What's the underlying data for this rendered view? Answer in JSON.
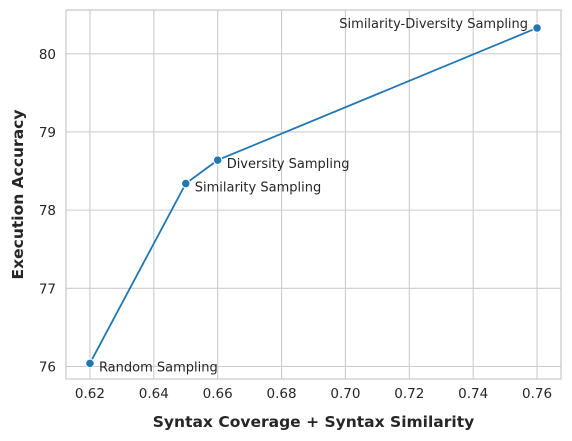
{
  "chart_data": {
    "type": "line",
    "title": "",
    "xlabel": "Syntax Coverage + Syntax Similarity",
    "ylabel": "Execution Accuracy",
    "xlim": [
      0.6125,
      0.7675
    ],
    "ylim": [
      75.84,
      80.56
    ],
    "xticks": [
      0.62,
      0.64,
      0.66,
      0.68,
      0.7,
      0.72,
      0.74,
      0.76
    ],
    "xtick_labels": [
      "0.62",
      "0.64",
      "0.66",
      "0.68",
      "0.70",
      "0.72",
      "0.74",
      "0.76"
    ],
    "yticks": [
      76,
      77,
      78,
      79,
      80
    ],
    "ytick_labels": [
      "76",
      "77",
      "78",
      "79",
      "80"
    ],
    "grid": true,
    "color": "#1f77b4",
    "series": [
      {
        "points": [
          {
            "x": 0.62,
            "y": 76.04,
            "label": "Random Sampling",
            "label_pos": "right"
          },
          {
            "x": 0.65,
            "y": 78.34,
            "label": "Similarity Sampling",
            "label_pos": "right"
          },
          {
            "x": 0.66,
            "y": 78.64,
            "label": "Diversity Sampling",
            "label_pos": "right"
          },
          {
            "x": 0.76,
            "y": 80.33,
            "label": "Similarity-Diversity Sampling",
            "label_pos": "left"
          }
        ]
      }
    ]
  }
}
